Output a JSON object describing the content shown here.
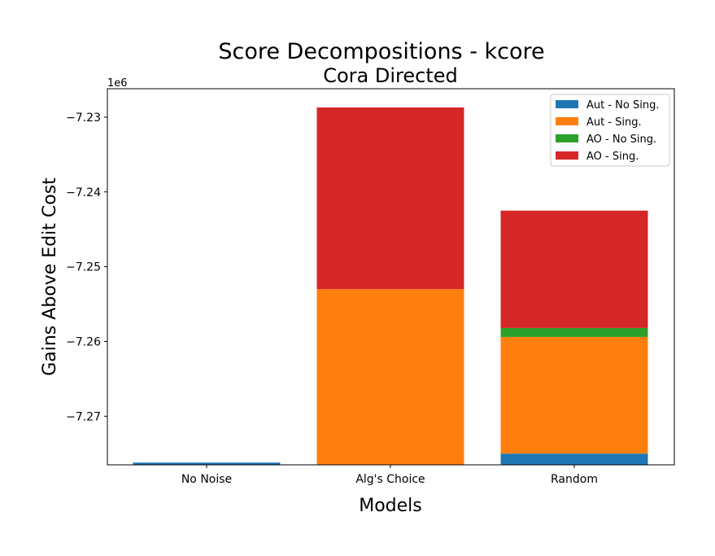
{
  "chart_data": {
    "type": "bar",
    "stacked": true,
    "title": "Score Decompositions - kcore",
    "subtitle": "Cora Directed",
    "xlabel": "Models",
    "ylabel": "Gains Above Edit Cost",
    "y_offset_label": "1e6",
    "categories": [
      "No Noise",
      "Alg's Choice",
      "Random"
    ],
    "ylim": [
      -7.2765,
      -7.2262
    ],
    "yticks": [
      -7.27,
      -7.26,
      -7.25,
      -7.24,
      -7.23
    ],
    "ytick_labels": [
      "−7.27",
      "−7.26",
      "−7.25",
      "−7.24",
      "−7.23"
    ],
    "series": [
      {
        "name": "Aut - No Sing.",
        "color": "#1f77b4",
        "bottoms": [
          -7.2765,
          -7.2765,
          -7.2765
        ],
        "tops": [
          -7.2762,
          -7.2765,
          -7.275
        ]
      },
      {
        "name": "Aut - Sing.",
        "color": "#ff7f0e",
        "bottoms": [
          -7.2762,
          -7.2765,
          -7.275
        ],
        "tops": [
          -7.2762,
          -7.253,
          -7.2594
        ]
      },
      {
        "name": "AO - No Sing.",
        "color": "#2ca02c",
        "bottoms": [
          -7.2762,
          -7.253,
          -7.2594
        ],
        "tops": [
          -7.2762,
          -7.253,
          -7.2582
        ]
      },
      {
        "name": "AO - Sing.",
        "color": "#d62728",
        "bottoms": [
          -7.2762,
          -7.253,
          -7.2582
        ],
        "tops": [
          -7.2762,
          -7.2287,
          -7.2425
        ]
      }
    ],
    "grid": false,
    "legend_position": "top-right"
  }
}
